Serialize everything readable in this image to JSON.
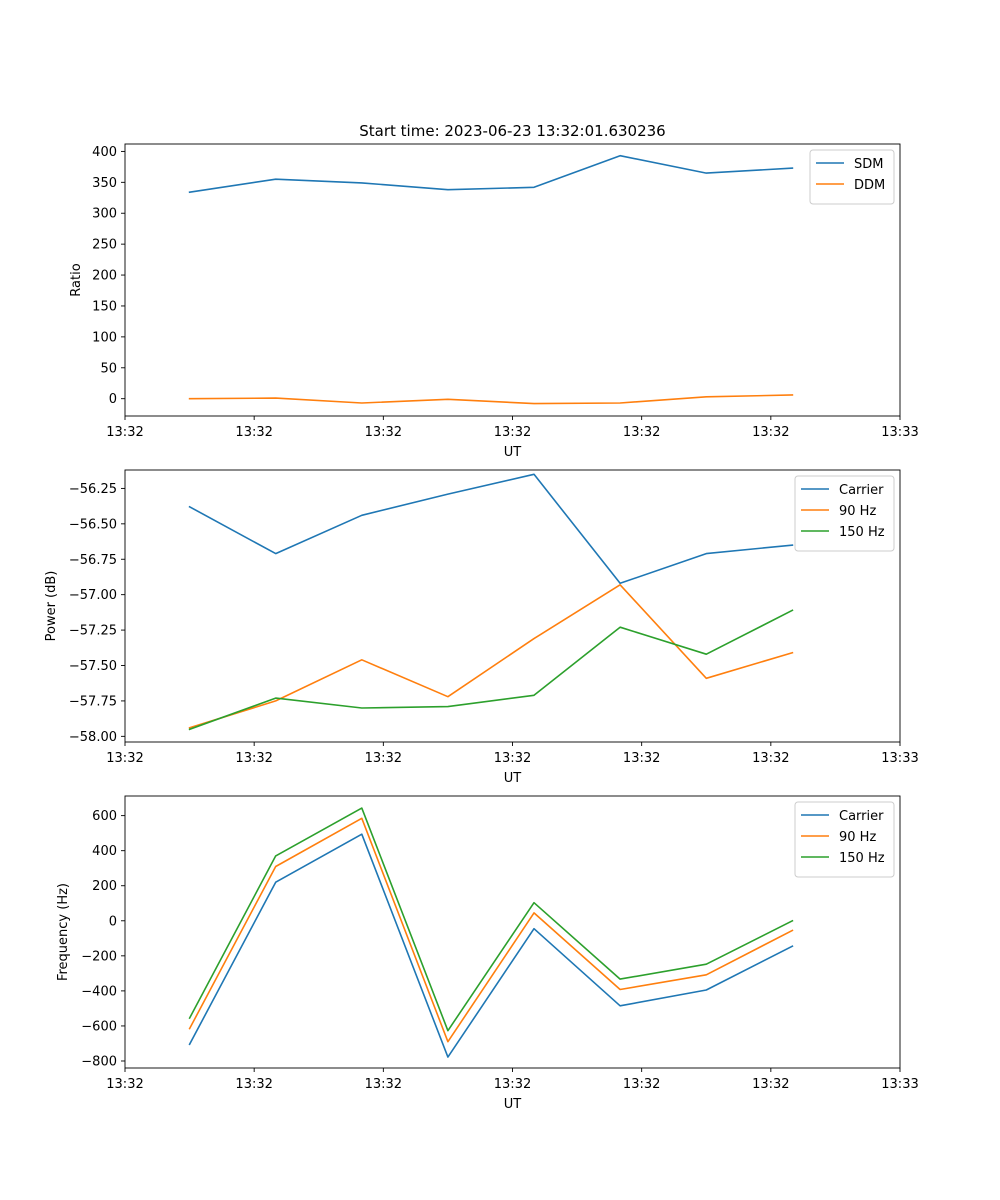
{
  "figure": {
    "title": "Start time: 2023-06-23 13:32:01.630236",
    "colors": {
      "blue": "#1f77b4",
      "orange": "#ff7f0e",
      "green": "#2ca02c"
    }
  },
  "chart_data": [
    {
      "type": "line",
      "title": "Start time: 2023-06-23 13:32:01.630236",
      "xlabel": "UT",
      "ylabel": "Ratio",
      "x": [
        1,
        2,
        3,
        4,
        5,
        6,
        7,
        8
      ],
      "xlim": [
        0.25,
        9.25
      ],
      "xticks": [
        0.25,
        1.75,
        3.25,
        4.75,
        6.25,
        7.75,
        9.25
      ],
      "xticklabels": [
        "13:32",
        "13:32",
        "13:32",
        "13:32",
        "13:32",
        "13:32",
        "13:33"
      ],
      "ylim": [
        -28,
        412
      ],
      "yticks": [
        0,
        50,
        100,
        150,
        200,
        250,
        300,
        350,
        400
      ],
      "yticklabels": [
        "0",
        "50",
        "100",
        "150",
        "200",
        "250",
        "300",
        "350",
        "400"
      ],
      "legend_position": "upper right",
      "series": [
        {
          "name": "SDM",
          "color": "#1f77b4",
          "values": [
            334,
            355,
            349,
            338,
            342,
            393,
            365,
            373
          ]
        },
        {
          "name": "DDM",
          "color": "#ff7f0e",
          "values": [
            0,
            1,
            -7,
            -1,
            -8,
            -7,
            3,
            6
          ]
        }
      ]
    },
    {
      "type": "line",
      "title": "",
      "xlabel": "UT",
      "ylabel": "Power (dB)",
      "x": [
        1,
        2,
        3,
        4,
        5,
        6,
        7,
        8
      ],
      "xlim": [
        0.25,
        9.25
      ],
      "xticks": [
        0.25,
        1.75,
        3.25,
        4.75,
        6.25,
        7.75,
        9.25
      ],
      "xticklabels": [
        "13:32",
        "13:32",
        "13:32",
        "13:32",
        "13:32",
        "13:32",
        "13:33"
      ],
      "ylim": [
        -58.04,
        -56.12
      ],
      "yticks": [
        -58.0,
        -57.75,
        -57.5,
        -57.25,
        -57.0,
        -56.75,
        -56.5,
        -56.25
      ],
      "yticklabels": [
        "−58.00",
        "−57.75",
        "−57.50",
        "−57.25",
        "−57.00",
        "−56.75",
        "−56.50",
        "−56.25"
      ],
      "legend_position": "upper right",
      "series": [
        {
          "name": "Carrier",
          "color": "#1f77b4",
          "values": [
            -56.38,
            -56.71,
            -56.44,
            -56.29,
            -56.15,
            -56.92,
            -56.71,
            -56.65
          ]
        },
        {
          "name": "90 Hz",
          "color": "#ff7f0e",
          "values": [
            -57.94,
            -57.75,
            -57.46,
            -57.72,
            -57.31,
            -56.93,
            -57.59,
            -57.41
          ]
        },
        {
          "name": "150 Hz",
          "color": "#2ca02c",
          "values": [
            -57.95,
            -57.73,
            -57.8,
            -57.79,
            -57.71,
            -57.23,
            -57.42,
            -57.11
          ]
        }
      ]
    },
    {
      "type": "line",
      "title": "",
      "xlabel": "UT",
      "ylabel": "Frequency (Hz)",
      "x": [
        1,
        2,
        3,
        4,
        5,
        6,
        7,
        8
      ],
      "xlim": [
        0.25,
        9.25
      ],
      "xticks": [
        0.25,
        1.75,
        3.25,
        4.75,
        6.25,
        7.75,
        9.25
      ],
      "xticklabels": [
        "13:32",
        "13:32",
        "13:32",
        "13:32",
        "13:32",
        "13:32",
        "13:33"
      ],
      "ylim": [
        -840,
        712
      ],
      "yticks": [
        -800,
        -600,
        -400,
        -200,
        0,
        200,
        400,
        600
      ],
      "yticklabels": [
        "−800",
        "−600",
        "−400",
        "−200",
        "0",
        "200",
        "400",
        "600"
      ],
      "legend_position": "upper right",
      "series": [
        {
          "name": "Carrier",
          "color": "#1f77b4",
          "values": [
            -705,
            220,
            494,
            -778,
            -45,
            -485,
            -395,
            -145
          ]
        },
        {
          "name": "90 Hz",
          "color": "#ff7f0e",
          "values": [
            -615,
            310,
            585,
            -690,
            45,
            -392,
            -308,
            -55
          ]
        },
        {
          "name": "150 Hz",
          "color": "#2ca02c",
          "values": [
            -555,
            370,
            643,
            -627,
            103,
            -333,
            -248,
            0
          ]
        }
      ]
    }
  ]
}
